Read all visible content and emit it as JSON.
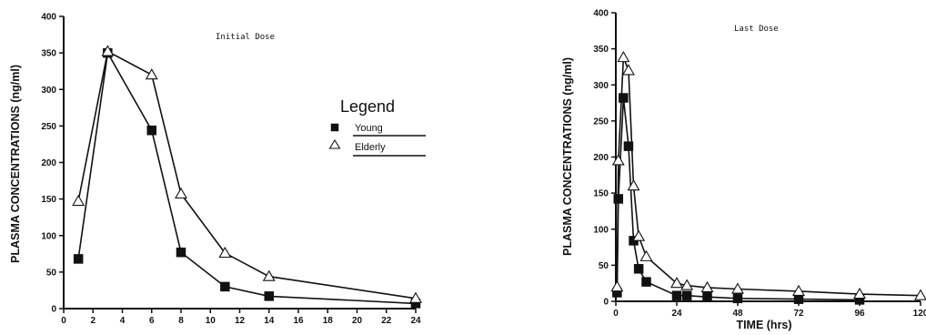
{
  "chart_data": [
    {
      "type": "line",
      "title": "Initial Dose",
      "xlabel": "",
      "ylabel": "PLASMA CONCENTRATIONS (ng/ml)",
      "xlim": [
        0,
        24
      ],
      "ylim": [
        0,
        400
      ],
      "xticks": [
        0,
        2,
        4,
        6,
        8,
        10,
        12,
        14,
        16,
        18,
        20,
        22,
        24
      ],
      "yticks": [
        0,
        50,
        100,
        150,
        200,
        250,
        300,
        350,
        400
      ],
      "grid": false,
      "legend": {
        "title": "Legend",
        "placement": "right",
        "entries": [
          "Young",
          "Elderly"
        ]
      },
      "series": [
        {
          "name": "Young",
          "marker": "square",
          "color": "#111111",
          "points": [
            [
              1,
              68
            ],
            [
              3,
              350
            ],
            [
              6,
              244
            ],
            [
              8,
              77
            ],
            [
              11,
              30
            ],
            [
              14,
              17
            ],
            [
              24,
              7
            ]
          ]
        },
        {
          "name": "Elderly",
          "marker": "triangle",
          "color": "#111111",
          "points": [
            [
              1,
              147
            ],
            [
              3,
              352
            ],
            [
              6,
              320
            ],
            [
              8,
              157
            ],
            [
              11,
              76
            ],
            [
              14,
              44
            ],
            [
              24,
              14
            ]
          ]
        }
      ]
    },
    {
      "type": "line",
      "title": "Last Dose",
      "xlabel": "TIME (hrs)",
      "ylabel": "PLASMA CONCENTRATIONS (ng/ml)",
      "xlim": [
        0,
        120
      ],
      "ylim": [
        0,
        400
      ],
      "xticks": [
        0,
        24,
        48,
        72,
        96,
        120
      ],
      "yticks": [
        0,
        50,
        100,
        150,
        200,
        250,
        300,
        350,
        400
      ],
      "grid": false,
      "series": [
        {
          "name": "Young",
          "marker": "square",
          "color": "#111111",
          "points": [
            [
              0.5,
              12
            ],
            [
              1,
              142
            ],
            [
              3,
              282
            ],
            [
              5,
              215
            ],
            [
              7,
              84
            ],
            [
              9,
              45
            ],
            [
              12,
              27
            ],
            [
              24,
              8
            ],
            [
              28,
              8
            ],
            [
              36,
              6
            ],
            [
              48,
              4
            ],
            [
              72,
              3
            ],
            [
              96,
              2
            ]
          ]
        },
        {
          "name": "Elderly",
          "marker": "triangle",
          "color": "#111111",
          "points": [
            [
              0.5,
              20
            ],
            [
              1,
              195
            ],
            [
              3,
              338
            ],
            [
              5,
              320
            ],
            [
              7,
              160
            ],
            [
              9,
              90
            ],
            [
              12,
              62
            ],
            [
              24,
              25
            ],
            [
              28,
              22
            ],
            [
              36,
              19
            ],
            [
              48,
              17
            ],
            [
              72,
              14
            ],
            [
              96,
              10
            ],
            [
              120,
              8
            ]
          ]
        }
      ]
    }
  ]
}
